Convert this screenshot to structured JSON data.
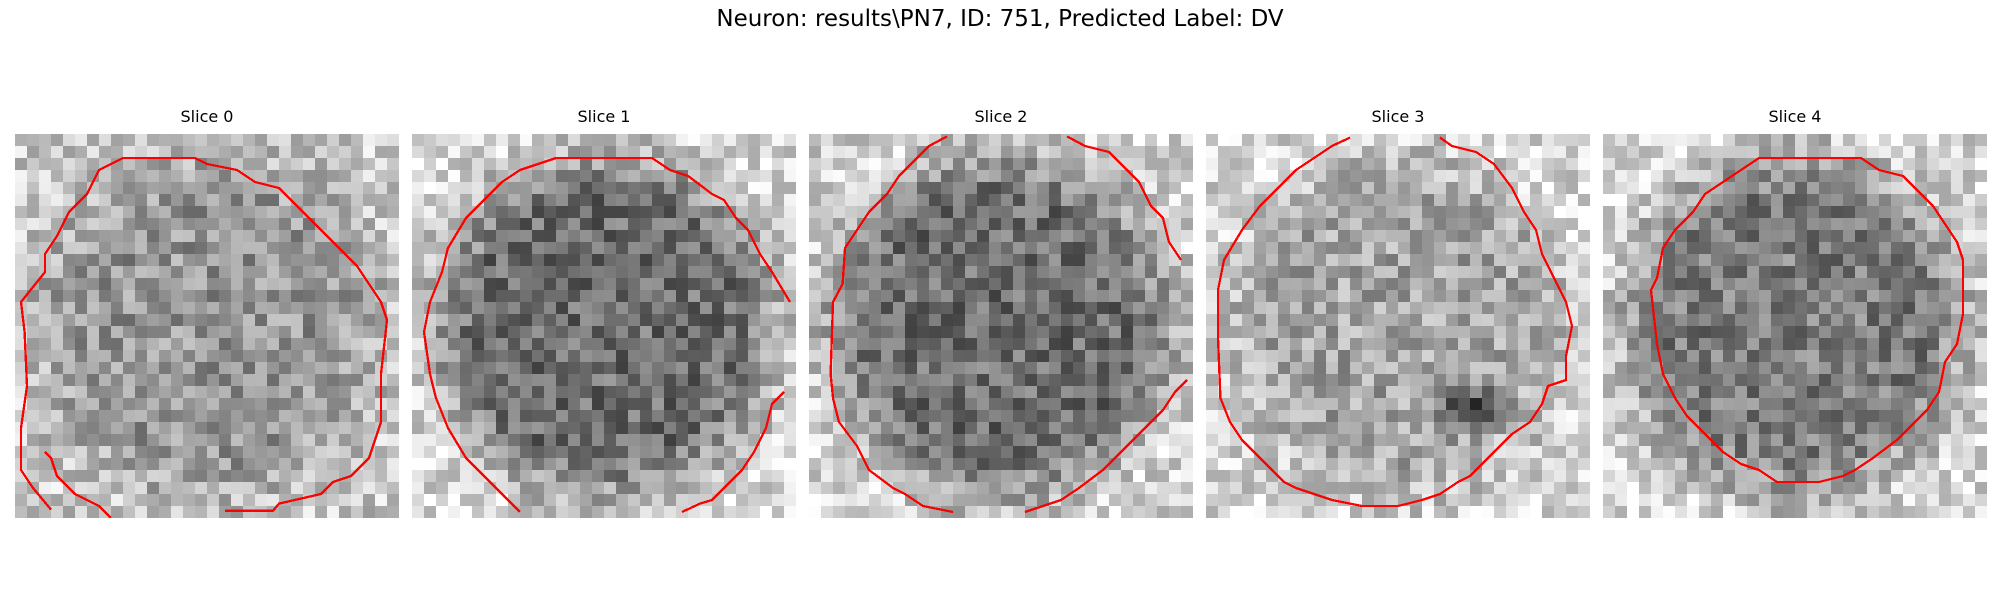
{
  "figure": {
    "title": "Neuron: results\\PN7, ID: 751, Predicted Label: DV"
  },
  "panels": [
    {
      "title": "Slice 0",
      "seed": 11,
      "base": 150,
      "border": 200,
      "dark_blob": false
    },
    {
      "title": "Slice 1",
      "seed": 23,
      "base": 110,
      "border": 215,
      "dark_blob": false
    },
    {
      "title": "Slice 2",
      "seed": 37,
      "base": 110,
      "border": 210,
      "dark_blob": false
    },
    {
      "title": "Slice 3",
      "seed": 41,
      "base": 165,
      "border": 215,
      "dark_blob": true
    },
    {
      "title": "Slice 4",
      "seed": 59,
      "base": 125,
      "border": 215,
      "dark_blob": false
    }
  ],
  "colors": {
    "contour": "#ff0000",
    "background": "#ffffff"
  }
}
